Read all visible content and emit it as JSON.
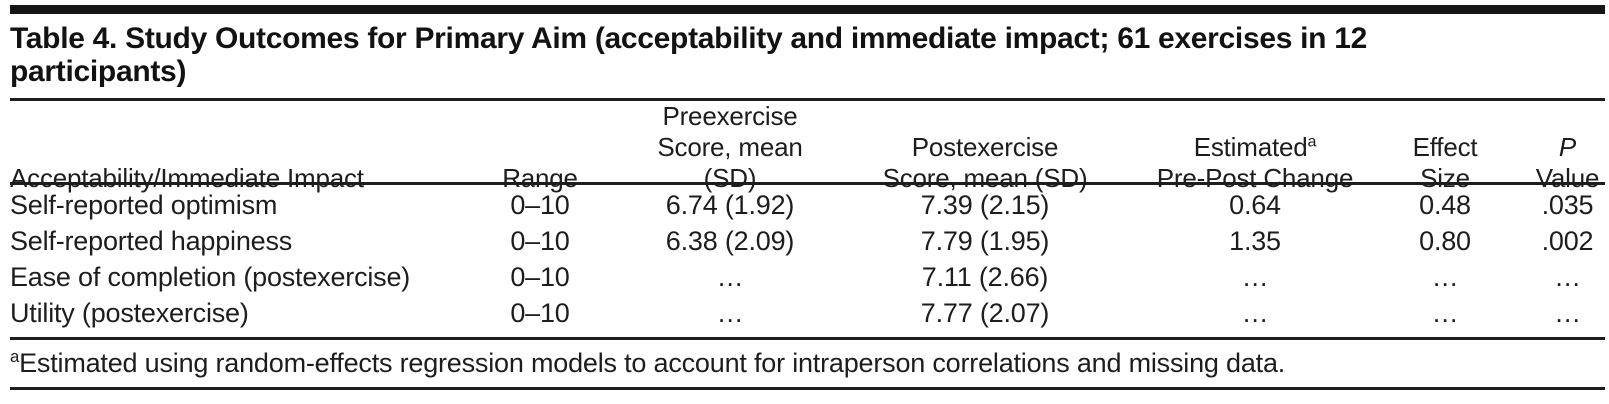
{
  "table": {
    "title": "Table 4. Study Outcomes for Primary Aim (acceptability and immediate impact; 61 exercises in 12 participants)",
    "columns": [
      {
        "line1": "",
        "line2": "Acceptability/Immediate Impact"
      },
      {
        "line1": "",
        "line2": "Range"
      },
      {
        "line1": "Preexercise",
        "line2": "Score, mean (SD)"
      },
      {
        "line1": "Postexercise",
        "line2": "Score, mean (SD)"
      },
      {
        "line1": "Estimated",
        "sup": "a",
        "line2": "Pre-Post Change"
      },
      {
        "line1": "Effect",
        "line2": "Size"
      },
      {
        "line1": "P",
        "line2": "Value"
      }
    ],
    "rows": [
      {
        "label": "Self-reported optimism",
        "range": "0–10",
        "pre": "6.74 (1.92)",
        "post": "7.39 (2.15)",
        "change": "0.64",
        "effect": "0.48",
        "p": ".035"
      },
      {
        "label": "Self-reported happiness",
        "range": "0–10",
        "pre": "6.38 (2.09)",
        "post": "7.79 (1.95)",
        "change": "1.35",
        "effect": "0.80",
        "p": ".002"
      },
      {
        "label": "Ease of completion (postexercise)",
        "range": "0–10",
        "pre": "…",
        "post": "7.11 (2.66)",
        "change": "…",
        "effect": "…",
        "p": "…"
      },
      {
        "label": "Utility (postexercise)",
        "range": "0–10",
        "pre": "…",
        "post": "7.77 (2.07)",
        "change": "…",
        "effect": "…",
        "p": "…"
      }
    ],
    "footnote": {
      "sup": "a",
      "text": "Estimated using random-effects regression models to account for intraperson correlations and missing data."
    },
    "colors": {
      "text": "#1d1d1d",
      "rule": "#1d1d1d",
      "top_bar": "#161616",
      "background": "#ffffff"
    }
  }
}
